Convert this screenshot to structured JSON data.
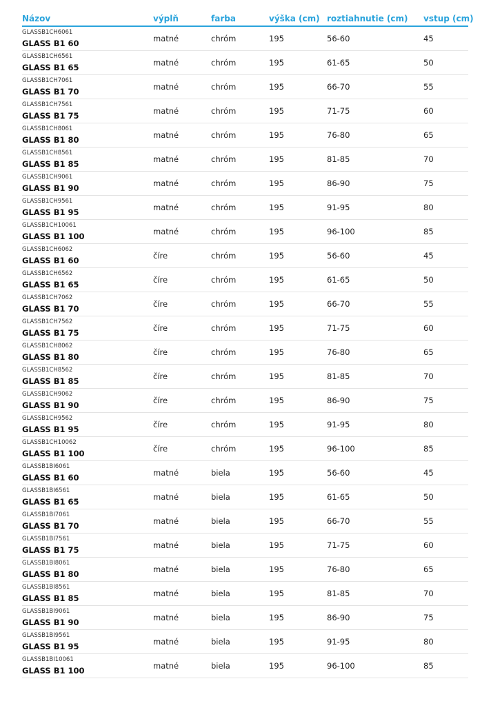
{
  "accent_color": "#29a3dc",
  "headers": [
    "Názov",
    "výplň",
    "farba",
    "výška (cm)",
    "roztiahnutie (cm)",
    "vstup (cm)"
  ],
  "rows": [
    {
      "code": "GLASSB1CH6061",
      "name": "GLASS B1 60",
      "fill": "matné",
      "color": "chróm",
      "height": "195",
      "range": "56-60",
      "entry": "45"
    },
    {
      "code": "GLASSB1CH6561",
      "name": "GLASS B1 65",
      "fill": "matné",
      "color": "chróm",
      "height": "195",
      "range": "61-65",
      "entry": "50"
    },
    {
      "code": "GLASSB1CH7061",
      "name": "GLASS B1 70",
      "fill": "matné",
      "color": "chróm",
      "height": "195",
      "range": "66-70",
      "entry": "55"
    },
    {
      "code": "GLASSB1CH7561",
      "name": "GLASS B1 75",
      "fill": "matné",
      "color": "chróm",
      "height": "195",
      "range": "71-75",
      "entry": "60"
    },
    {
      "code": "GLASSB1CH8061",
      "name": "GLASS B1 80",
      "fill": "matné",
      "color": "chróm",
      "height": "195",
      "range": "76-80",
      "entry": "65"
    },
    {
      "code": "GLASSB1CH8561",
      "name": "GLASS B1 85",
      "fill": "matné",
      "color": "chróm",
      "height": "195",
      "range": "81-85",
      "entry": "70"
    },
    {
      "code": "GLASSB1CH9061",
      "name": "GLASS B1 90",
      "fill": "matné",
      "color": "chróm",
      "height": "195",
      "range": "86-90",
      "entry": "75"
    },
    {
      "code": "GLASSB1CH9561",
      "name": "GLASS B1 95",
      "fill": "matné",
      "color": "chróm",
      "height": "195",
      "range": "91-95",
      "entry": "80"
    },
    {
      "code": "GLASSB1CH10061",
      "name": "GLASS B1 100",
      "fill": "matné",
      "color": "chróm",
      "height": "195",
      "range": "96-100",
      "entry": "85"
    },
    {
      "code": "GLASSB1CH6062",
      "name": "GLASS B1 60",
      "fill": "číre",
      "color": "chróm",
      "height": "195",
      "range": "56-60",
      "entry": "45"
    },
    {
      "code": "GLASSB1CH6562",
      "name": "GLASS B1 65",
      "fill": "číre",
      "color": "chróm",
      "height": "195",
      "range": "61-65",
      "entry": "50"
    },
    {
      "code": "GLASSB1CH7062",
      "name": "GLASS B1 70",
      "fill": "číre",
      "color": "chróm",
      "height": "195",
      "range": "66-70",
      "entry": "55"
    },
    {
      "code": "GLASSB1CH7562",
      "name": "GLASS B1 75",
      "fill": "číre",
      "color": "chróm",
      "height": "195",
      "range": "71-75",
      "entry": "60"
    },
    {
      "code": "GLASSB1CH8062",
      "name": "GLASS B1 80",
      "fill": "číre",
      "color": "chróm",
      "height": "195",
      "range": "76-80",
      "entry": "65"
    },
    {
      "code": "GLASSB1CH8562",
      "name": "GLASS B1 85",
      "fill": "číre",
      "color": "chróm",
      "height": "195",
      "range": "81-85",
      "entry": "70"
    },
    {
      "code": "GLASSB1CH9062",
      "name": "GLASS B1 90",
      "fill": "číre",
      "color": "chróm",
      "height": "195",
      "range": "86-90",
      "entry": "75"
    },
    {
      "code": "GLASSB1CH9562",
      "name": "GLASS B1 95",
      "fill": "číre",
      "color": "chróm",
      "height": "195",
      "range": "91-95",
      "entry": "80"
    },
    {
      "code": "GLASSB1CH10062",
      "name": "GLASS B1 100",
      "fill": "číre",
      "color": "chróm",
      "height": "195",
      "range": "96-100",
      "entry": "85"
    },
    {
      "code": "GLASSB1BI6061",
      "name": "GLASS B1 60",
      "fill": "matné",
      "color": "biela",
      "height": "195",
      "range": "56-60",
      "entry": "45"
    },
    {
      "code": "GLASSB1BI6561",
      "name": "GLASS B1 65",
      "fill": "matné",
      "color": "biela",
      "height": "195",
      "range": "61-65",
      "entry": "50"
    },
    {
      "code": "GLASSB1BI7061",
      "name": "GLASS B1 70",
      "fill": "matné",
      "color": "biela",
      "height": "195",
      "range": "66-70",
      "entry": "55"
    },
    {
      "code": "GLASSB1BI7561",
      "name": "GLASS B1 75",
      "fill": "matné",
      "color": "biela",
      "height": "195",
      "range": "71-75",
      "entry": "60"
    },
    {
      "code": "GLASSB1BI8061",
      "name": "GLASS B1 80",
      "fill": "matné",
      "color": "biela",
      "height": "195",
      "range": "76-80",
      "entry": "65"
    },
    {
      "code": "GLASSB1BI8561",
      "name": "GLASS B1 85",
      "fill": "matné",
      "color": "biela",
      "height": "195",
      "range": "81-85",
      "entry": "70"
    },
    {
      "code": "GLASSB1BI9061",
      "name": "GLASS B1 90",
      "fill": "matné",
      "color": "biela",
      "height": "195",
      "range": "86-90",
      "entry": "75"
    },
    {
      "code": "GLASSB1BI9561",
      "name": "GLASS B1 95",
      "fill": "matné",
      "color": "biela",
      "height": "195",
      "range": "91-95",
      "entry": "80"
    },
    {
      "code": "GLASSB1BI10061",
      "name": "GLASS B1 100",
      "fill": "matné",
      "color": "biela",
      "height": "195",
      "range": "96-100",
      "entry": "85"
    }
  ]
}
